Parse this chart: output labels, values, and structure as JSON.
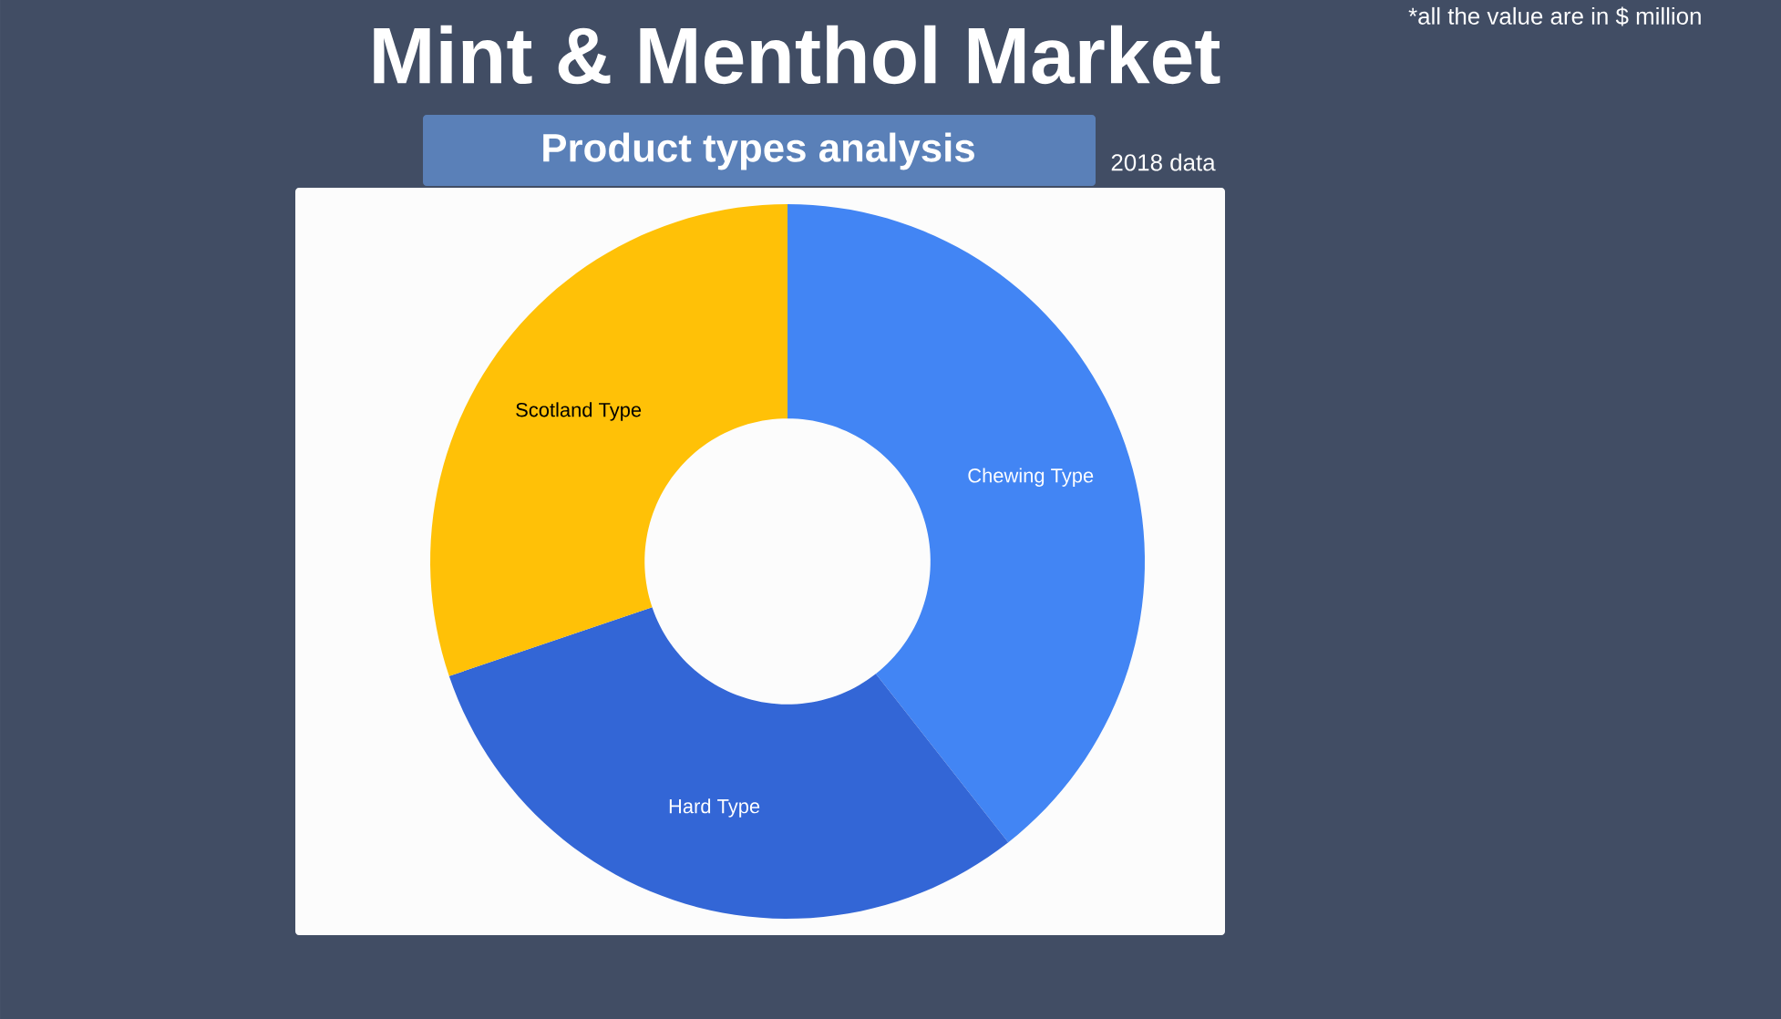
{
  "chart_data": {
    "type": "donut",
    "title": "Mint & Menthol Market",
    "subtitle": "Product types analysis",
    "categories": [
      "Chewing Type",
      "Hard Type",
      "Scotland Type"
    ],
    "values": [
      39.4,
      30.4,
      30.2
    ],
    "colors": [
      "#4285f4",
      "#3366d6",
      "#ffc107"
    ],
    "annotations": [
      "2018 data",
      "*all the value are in $ million"
    ]
  }
}
